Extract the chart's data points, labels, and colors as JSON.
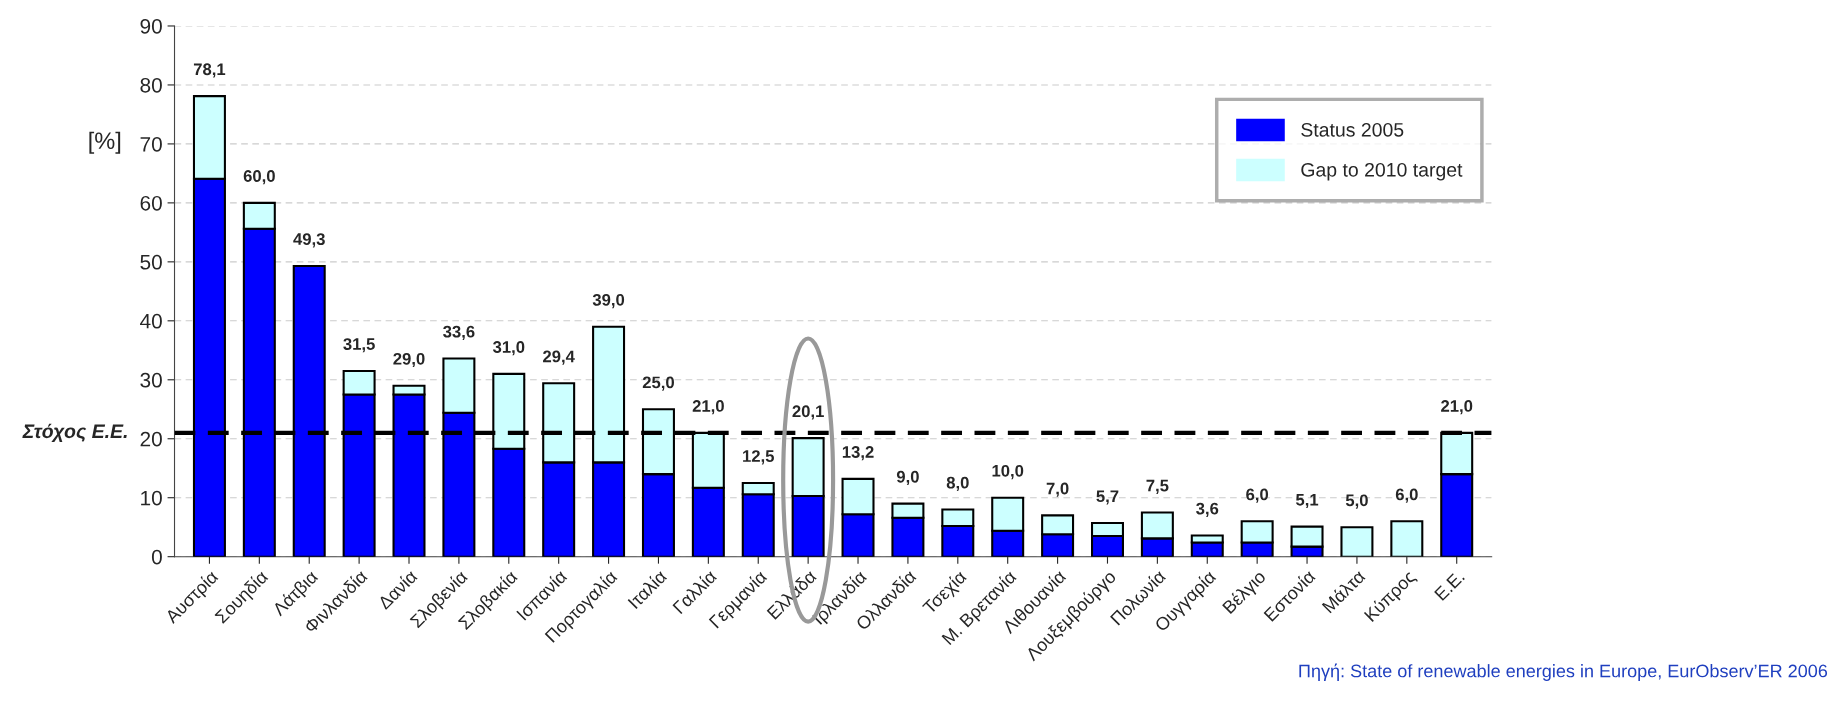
{
  "chart_data": {
    "type": "bar",
    "stacked": true,
    "ylabel": "[%]",
    "categories": [
      "Αυστρία",
      "Σουηδία",
      "Λάτβια",
      "Φινλανδία",
      "Δανία",
      "Σλοβενία",
      "Σλοβακία",
      "Ισπανία",
      "Πορτογαλία",
      "Ιταλία",
      "Γαλλία",
      "Γερμανία",
      "Ελλάδα",
      "Ιρλανδία",
      "Ολλανδία",
      "Τσεχία",
      "Μ. Βρετανία",
      "Λιθουανία",
      "Λουξεμβούργο",
      "Πολωνία",
      "Ουγγαρία",
      "Βέλγιο",
      "Εστονία",
      "Μάλτα",
      "Κύπρος",
      "Ε.Ε."
    ],
    "series": [
      {
        "name": "Status 2005",
        "color": "#0000ff",
        "values": [
          64.1,
          55.6,
          49.3,
          27.5,
          27.5,
          24.4,
          18.3,
          16.0,
          16.0,
          14.0,
          11.7,
          10.6,
          10.3,
          7.2,
          6.6,
          5.2,
          4.4,
          3.8,
          3.5,
          3.1,
          2.4,
          2.4,
          1.7,
          0,
          0,
          14.0
        ]
      },
      {
        "name": "Gap to 2010 target",
        "color": "#ccffff",
        "values": [
          14.0,
          4.4,
          0,
          4.0,
          1.5,
          9.2,
          12.7,
          13.4,
          23.0,
          11.0,
          9.3,
          1.9,
          9.8,
          6.0,
          2.4,
          2.8,
          5.6,
          3.2,
          2.2,
          4.4,
          1.2,
          3.6,
          3.4,
          5.0,
          6.0,
          7.0
        ]
      }
    ],
    "totals": [
      "78,1",
      "60,0",
      "49,3",
      "31,5",
      "29,0",
      "33,6",
      "31,0",
      "29,4",
      "39,0",
      "25,0",
      "21,0",
      "12,5",
      "20,1",
      "13,2",
      "9,0",
      "8,0",
      "10,0",
      "7,0",
      "5,7",
      "7,5",
      "3,6",
      "6,0",
      "5,1",
      "5,0",
      "6,0",
      "21,0"
    ],
    "ylim": [
      0,
      90
    ],
    "yticks": [
      0,
      10,
      20,
      30,
      40,
      50,
      60,
      70,
      80,
      90
    ],
    "grid": "y",
    "legend": "top right",
    "ref_lines": [
      {
        "axis": "y",
        "value": 21,
        "label": "Στόχος Ε.Ε.",
        "color": "#000000",
        "line_style": "dashed"
      }
    ],
    "annotations": [
      "Πηγή: State of renewable energies in Europe, EurObserv’ER 2006"
    ]
  }
}
